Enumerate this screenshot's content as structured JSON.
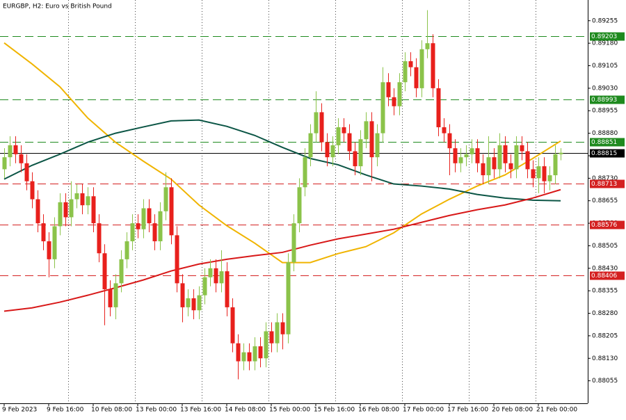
{
  "chart_data": {
    "type": "candlestick",
    "title": "EURGBP, H2:  Euro vs British Pound",
    "categories": [
      "9 Feb 2023",
      null,
      null,
      null,
      null,
      null,
      null,
      null,
      "9 Feb 16:00",
      null,
      null,
      null,
      null,
      null,
      null,
      null,
      "10 Feb 08:00",
      null,
      null,
      null,
      null,
      null,
      null,
      null,
      "13 Feb 00:00",
      null,
      null,
      null,
      null,
      null,
      null,
      null,
      "13 Feb 16:00",
      null,
      null,
      null,
      null,
      null,
      null,
      null,
      "14 Feb 08:00",
      null,
      null,
      null,
      null,
      null,
      null,
      null,
      "15 Feb 00:00",
      null,
      null,
      null,
      null,
      null,
      null,
      null,
      "15 Feb 16:00",
      null,
      null,
      null,
      null,
      null,
      null,
      null,
      "16 Feb 08:00",
      null,
      null,
      null,
      null,
      null,
      null,
      null,
      "17 Feb 00:00",
      null,
      null,
      null,
      null,
      null,
      null,
      null,
      "17 Feb 16:00",
      null,
      null,
      null,
      null,
      null,
      null,
      null,
      "20 Feb 08:00",
      null,
      null,
      null,
      null,
      null,
      null,
      null,
      "21 Feb 00:00",
      null,
      null,
      null,
      null
    ],
    "open": [
      0.8876,
      0.888,
      0.8884,
      0.8881,
      0.8878,
      0.8872,
      0.8866,
      0.8858,
      0.8852,
      0.8846,
      0.8857,
      0.8865,
      0.886,
      0.8866,
      0.8868,
      0.8864,
      0.8867,
      0.8858,
      0.8848,
      0.8836,
      0.883,
      0.8838,
      0.8846,
      0.8852,
      0.8858,
      0.8856,
      0.8863,
      0.8858,
      0.8852,
      0.8862,
      0.887,
      0.8854,
      0.8838,
      0.883,
      0.8833,
      0.8829,
      0.8834,
      0.884,
      0.8843,
      0.8838,
      0.8842,
      0.883,
      0.8818,
      0.8812,
      0.8815,
      0.8812,
      0.8817,
      0.8813,
      0.8822,
      0.8818,
      0.8825,
      0.8821,
      0.8845,
      0.8858,
      0.887,
      0.888,
      0.8888,
      0.8895,
      0.8885,
      0.888,
      0.8884,
      0.889,
      0.8888,
      0.8882,
      0.8877,
      0.8886,
      0.8892,
      0.888,
      0.8888,
      0.8905,
      0.89,
      0.8897,
      0.8905,
      0.8912,
      0.891,
      0.8903,
      0.8916,
      0.8918,
      0.8903,
      0.889,
      0.8888,
      0.8883,
      0.8878,
      0.888,
      0.8881,
      0.8883,
      0.8878,
      0.8874,
      0.888,
      0.8876,
      0.8884,
      0.8878,
      0.8876,
      0.8884,
      0.8882,
      0.8876,
      0.8873,
      0.8877,
      0.8872,
      0.8874,
      0.8881
    ],
    "high": [
      0.8883,
      0.8887,
      0.8887,
      0.8884,
      0.8881,
      0.8875,
      0.8869,
      0.8861,
      0.8855,
      0.886,
      0.8868,
      0.8868,
      0.8872,
      0.8871,
      0.8871,
      0.887,
      0.887,
      0.8861,
      0.8851,
      0.8839,
      0.8841,
      0.8849,
      0.8855,
      0.8861,
      0.8861,
      0.8866,
      0.8866,
      0.8861,
      0.8865,
      0.8875,
      0.8873,
      0.8857,
      0.8841,
      0.8836,
      0.8836,
      0.8837,
      0.8843,
      0.8846,
      0.8846,
      0.8849,
      0.8845,
      0.8833,
      0.8821,
      0.8818,
      0.8818,
      0.882,
      0.882,
      0.8825,
      0.8825,
      0.8828,
      0.8828,
      0.8848,
      0.8861,
      0.8873,
      0.8883,
      0.8891,
      0.8902,
      0.8898,
      0.8888,
      0.8887,
      0.8893,
      0.8893,
      0.8891,
      0.8885,
      0.8889,
      0.8895,
      0.8895,
      0.8891,
      0.891,
      0.8908,
      0.8903,
      0.8908,
      0.8915,
      0.8915,
      0.8913,
      0.8919,
      0.8929,
      0.8921,
      0.8906,
      0.8893,
      0.8891,
      0.8886,
      0.8883,
      0.8884,
      0.8886,
      0.8886,
      0.8881,
      0.8887,
      0.8883,
      0.8888,
      0.8887,
      0.8881,
      0.8887,
      0.8887,
      0.8885,
      0.8879,
      0.888,
      0.888,
      0.8877,
      0.8884,
      0.8883
    ],
    "low": [
      0.8873,
      0.8877,
      0.8878,
      0.8875,
      0.8869,
      0.8863,
      0.8855,
      0.8849,
      0.884,
      0.8843,
      0.8854,
      0.8857,
      0.8857,
      0.8863,
      0.8861,
      0.8861,
      0.8855,
      0.8845,
      0.8824,
      0.8827,
      0.8826,
      0.8835,
      0.8843,
      0.8849,
      0.8853,
      0.8853,
      0.8855,
      0.8849,
      0.8849,
      0.8859,
      0.8851,
      0.8835,
      0.8825,
      0.8827,
      0.8826,
      0.8826,
      0.8831,
      0.8837,
      0.8835,
      0.8835,
      0.8827,
      0.8815,
      0.8806,
      0.8809,
      0.8809,
      0.8809,
      0.881,
      0.881,
      0.8815,
      0.8815,
      0.8816,
      0.8818,
      0.8842,
      0.8855,
      0.8867,
      0.8877,
      0.8885,
      0.8882,
      0.8877,
      0.8877,
      0.8881,
      0.8885,
      0.8879,
      0.8874,
      0.8874,
      0.8883,
      0.8872,
      0.8877,
      0.8885,
      0.8897,
      0.8894,
      0.8894,
      0.8902,
      0.8907,
      0.89,
      0.89,
      0.8913,
      0.89,
      0.8887,
      0.8885,
      0.8874,
      0.8875,
      0.8875,
      0.8877,
      0.8878,
      0.8875,
      0.8871,
      0.8871,
      0.8873,
      0.8873,
      0.8875,
      0.8873,
      0.8873,
      0.8879,
      0.8873,
      0.887,
      0.8868,
      0.8868,
      0.8869,
      0.8871,
      0.8879
    ],
    "close": [
      0.888,
      0.8884,
      0.8881,
      0.8878,
      0.8872,
      0.8866,
      0.8858,
      0.8852,
      0.8846,
      0.8857,
      0.8865,
      0.886,
      0.8866,
      0.8868,
      0.8864,
      0.8867,
      0.8858,
      0.8848,
      0.8836,
      0.883,
      0.8838,
      0.8846,
      0.8852,
      0.8858,
      0.8856,
      0.8863,
      0.8858,
      0.8852,
      0.8862,
      0.887,
      0.8854,
      0.8838,
      0.883,
      0.8833,
      0.8829,
      0.8834,
      0.884,
      0.8843,
      0.8838,
      0.8842,
      0.883,
      0.8818,
      0.8812,
      0.8815,
      0.8812,
      0.8817,
      0.8813,
      0.8822,
      0.8818,
      0.8825,
      0.8821,
      0.8845,
      0.8858,
      0.887,
      0.888,
      0.8888,
      0.8895,
      0.8885,
      0.888,
      0.8884,
      0.889,
      0.8888,
      0.8882,
      0.8877,
      0.8886,
      0.8892,
      0.888,
      0.8888,
      0.8905,
      0.89,
      0.8897,
      0.8905,
      0.8912,
      0.891,
      0.8903,
      0.8916,
      0.8918,
      0.8903,
      0.889,
      0.8888,
      0.8883,
      0.8878,
      0.888,
      0.8881,
      0.8883,
      0.8878,
      0.8874,
      0.888,
      0.8876,
      0.8884,
      0.8878,
      0.8876,
      0.8884,
      0.8882,
      0.8876,
      0.8873,
      0.8877,
      0.8872,
      0.8874,
      0.8881,
      0.88815
    ],
    "up_color": "#8bc34a",
    "down_color": "#e8201c",
    "indicators": [
      {
        "color": "#f0b400",
        "x": [
          0,
          5,
          10,
          15,
          20,
          25,
          30,
          35,
          40,
          45,
          50,
          55,
          60,
          65,
          70,
          75,
          80,
          85,
          90,
          95,
          100
        ],
        "values": [
          0.89181,
          0.89111,
          0.89035,
          0.88931,
          0.8885,
          0.88787,
          0.88727,
          0.88641,
          0.88572,
          0.88514,
          0.88449,
          0.88449,
          0.88479,
          0.88502,
          0.88548,
          0.88611,
          0.8866,
          0.88704,
          0.88741,
          0.88796,
          0.88854
        ]
      },
      {
        "color": "#0b5545",
        "x": [
          0,
          5,
          10,
          15,
          20,
          25,
          30,
          35,
          40,
          45,
          50,
          55,
          60,
          65,
          70,
          75,
          80,
          85,
          90,
          95,
          100
        ],
        "values": [
          0.88727,
          0.88773,
          0.8881,
          0.8885,
          0.8888,
          0.88901,
          0.88921,
          0.88924,
          0.88903,
          0.88873,
          0.88833,
          0.88796,
          0.88775,
          0.88741,
          0.88711,
          0.88704,
          0.88694,
          0.88676,
          0.88664,
          0.88657,
          0.88655
        ]
      },
      {
        "color": "#d81818",
        "x": [
          0,
          5,
          10,
          15,
          20,
          25,
          30,
          35,
          40,
          45,
          50,
          55,
          60,
          65,
          70,
          75,
          80,
          85,
          90,
          95,
          100
        ],
        "values": [
          0.88287,
          0.88298,
          0.88317,
          0.8834,
          0.88365,
          0.88391,
          0.88421,
          0.88444,
          0.8846,
          0.88472,
          0.88483,
          0.88507,
          0.88528,
          0.88544,
          0.8856,
          0.88583,
          0.88606,
          0.88625,
          0.88641,
          0.88664,
          0.88692
        ]
      }
    ],
    "levels": [
      {
        "value": 0.89203,
        "color": "#1e8a1e",
        "style": "dashed"
      },
      {
        "value": 0.88993,
        "color": "#1e8a1e",
        "style": "dashed"
      },
      {
        "value": 0.88851,
        "color": "#1e8a1e",
        "style": "dashed"
      },
      {
        "value": 0.88815,
        "color": "#000000",
        "style": "solid"
      },
      {
        "value": 0.88713,
        "color": "#d42020",
        "style": "dashed"
      },
      {
        "value": 0.88576,
        "color": "#d42020",
        "style": "dashed"
      },
      {
        "value": 0.88406,
        "color": "#d42020",
        "style": "dashed"
      }
    ],
    "ylim": [
      0.8798,
      0.89324
    ],
    "yticks": [
      0.88055,
      {
        "value": 0.8813,
        "label": "0.88130"
      },
      0.88205,
      {
        "value": 0.8828,
        "label": "0.88280"
      },
      0.88355,
      {
        "value": 0.8843,
        "label": "0.88430"
      },
      0.88505,
      {
        "value": 0.8858,
        "label": "0.88580"
      },
      0.88655,
      {
        "value": 0.8873,
        "label": "0.88730"
      },
      0.88805,
      {
        "value": 0.8888,
        "label": "0.88880"
      },
      0.88955,
      {
        "value": 0.8903,
        "label": "0.89030"
      },
      0.89105,
      {
        "value": 0.8918,
        "label": "0.89180"
      },
      0.89255
    ]
  }
}
